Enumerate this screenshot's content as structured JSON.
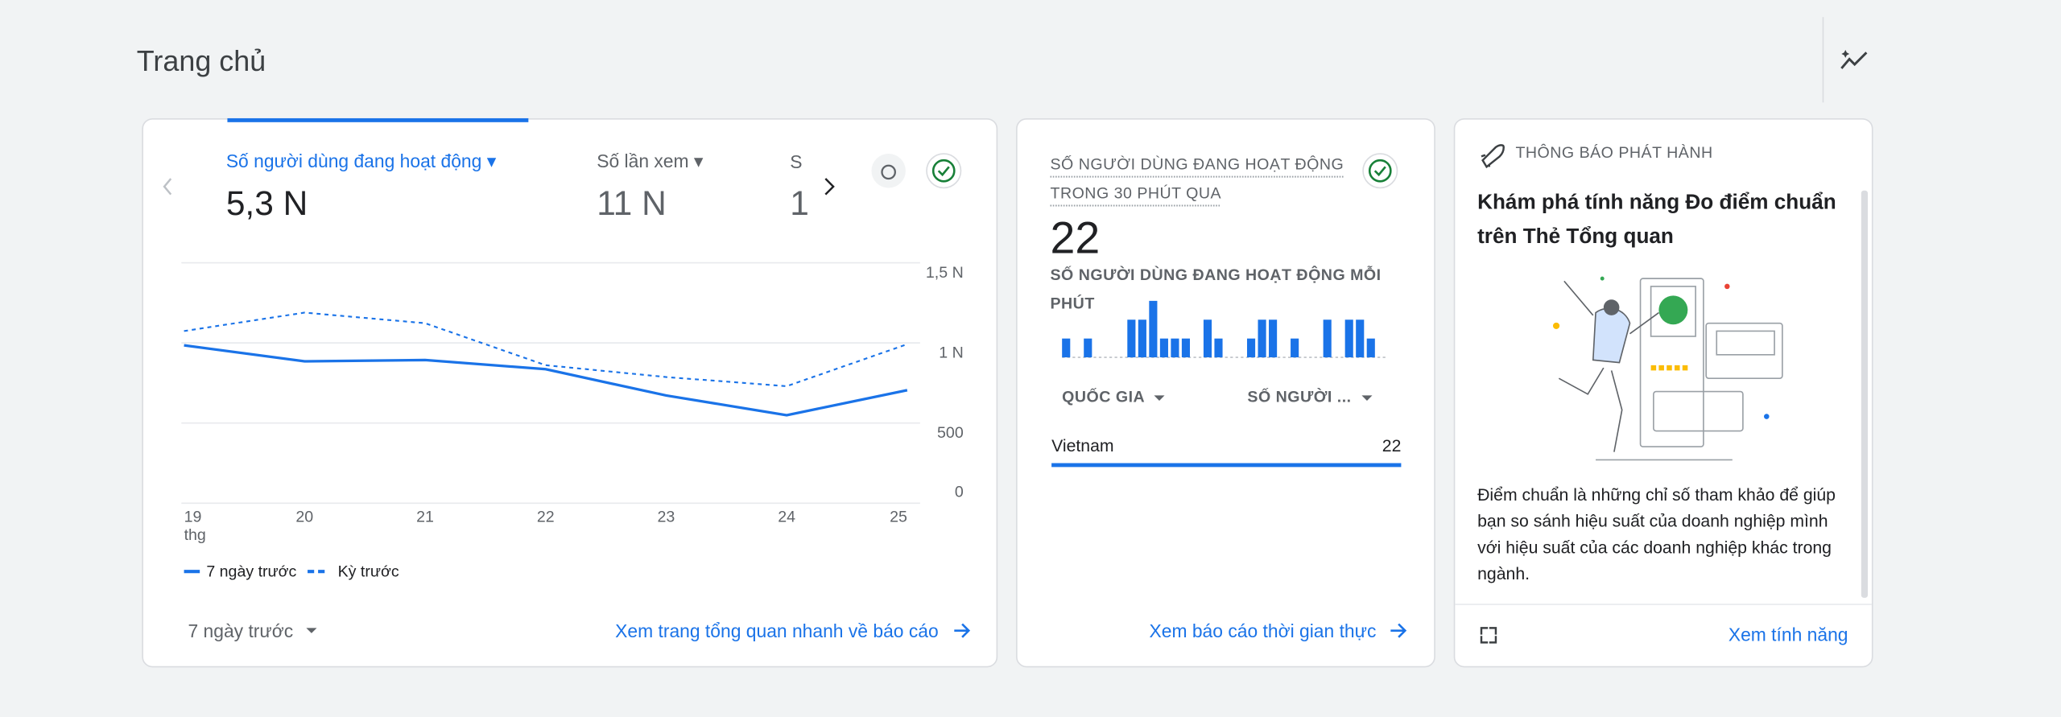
{
  "header": {
    "title": "Trang chủ"
  },
  "overview_card": {
    "tabs": [
      {
        "label": "Số người dùng đang hoạt động",
        "value": "5,3 N"
      },
      {
        "label": "Số lần xem",
        "value": "11 N"
      },
      {
        "label": "S",
        "value": "1"
      }
    ],
    "chart": {
      "type": "line",
      "x": [
        "19",
        "20",
        "21",
        "22",
        "23",
        "24",
        "25"
      ],
      "x_sublabel": "thg",
      "ylim": [
        0,
        1500
      ],
      "yticks": [
        0,
        500,
        {
          "value": 1000,
          "label": "1 N"
        },
        {
          "value": 1500,
          "label": "1,5 N"
        }
      ],
      "grid": true,
      "series": [
        {
          "name": "7 ngày trước",
          "color": "#1a73e8",
          "style": "solid",
          "values": [
            985,
            885,
            893,
            836,
            672,
            549,
            705
          ]
        },
        {
          "name": "Kỳ trước",
          "color": "#1a73e8",
          "style": "dashed",
          "values": [
            1074,
            1189,
            1123,
            861,
            787,
            730,
            992
          ]
        }
      ]
    },
    "date_range": "7 ngày trước",
    "link": "Xem trang tổng quan nhanh về báo cáo"
  },
  "realtime_card": {
    "title": "SỐ NGƯỜI DÙNG ĐANG HOẠT ĐỘNG TRONG 30 PHÚT QUA",
    "total": 22,
    "chart_title": "SỐ NGƯỜI DÙNG ĐANG HOẠT ĐỘNG MỖI PHÚT",
    "per_minute": {
      "type": "bar",
      "color": "#1a73e8",
      "values": [
        1,
        0,
        1,
        0,
        0,
        0,
        2,
        2,
        3,
        1,
        1,
        1,
        0,
        2,
        1,
        0,
        0,
        1,
        2,
        2,
        0,
        1,
        0,
        0,
        2,
        0,
        2,
        2,
        1,
        0
      ]
    },
    "table": {
      "columns": [
        "QUỐC GIA",
        "SỐ NGƯỜI ..."
      ],
      "rows": [
        [
          "Vietnam",
          22
        ]
      ]
    },
    "link": "Xem báo cáo thời gian thực"
  },
  "release_card": {
    "label": "THÔNG BÁO PHÁT HÀNH",
    "title": "Khám phá tính năng Đo điểm chuẩn trên Thẻ Tổng quan",
    "body": "Điểm chuẩn là những chỉ số tham khảo để giúp bạn so sánh hiệu suất của doanh nghiệp mình với hiệu suất của các doanh nghiệp khác trong ngành.",
    "link": "Xem tính năng"
  }
}
